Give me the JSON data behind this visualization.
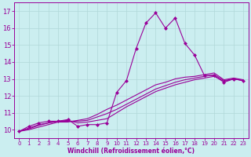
{
  "xlabel": "Windchill (Refroidissement éolien,°C)",
  "bg_color": "#cbeef0",
  "line_color": "#990099",
  "grid_color": "#b0d8d8",
  "xlim": [
    -0.5,
    23.5
  ],
  "ylim": [
    9.5,
    17.5
  ],
  "yticks": [
    10,
    11,
    12,
    13,
    14,
    15,
    16,
    17
  ],
  "xticks": [
    0,
    1,
    2,
    3,
    4,
    5,
    6,
    7,
    8,
    9,
    10,
    11,
    12,
    13,
    14,
    15,
    16,
    17,
    18,
    19,
    20,
    21,
    22,
    23
  ],
  "series": [
    [
      9.9,
      10.2,
      10.4,
      10.5,
      10.5,
      10.6,
      10.2,
      10.3,
      10.3,
      10.4,
      12.2,
      12.9,
      14.8,
      16.3,
      16.9,
      16.0,
      16.6,
      15.1,
      14.4,
      13.2,
      13.2,
      12.8,
      13.0,
      12.9
    ],
    [
      9.9,
      10.1,
      10.3,
      10.4,
      10.5,
      10.55,
      10.4,
      10.45,
      10.55,
      10.65,
      11.0,
      11.35,
      11.65,
      11.95,
      12.25,
      12.45,
      12.65,
      12.8,
      12.95,
      13.05,
      13.15,
      12.85,
      13.0,
      12.9
    ],
    [
      9.9,
      10.05,
      10.25,
      10.4,
      10.5,
      10.5,
      10.5,
      10.55,
      10.75,
      10.95,
      11.2,
      11.5,
      11.8,
      12.1,
      12.4,
      12.6,
      12.8,
      12.95,
      13.05,
      13.15,
      13.25,
      12.9,
      13.0,
      12.9
    ],
    [
      9.9,
      10.0,
      10.15,
      10.3,
      10.45,
      10.45,
      10.55,
      10.65,
      10.9,
      11.2,
      11.45,
      11.75,
      12.05,
      12.35,
      12.65,
      12.8,
      13.0,
      13.1,
      13.15,
      13.25,
      13.35,
      12.95,
      13.05,
      12.95
    ]
  ],
  "marker_series_idx": [
    0
  ],
  "marker": "D",
  "marker_size": 2.0,
  "lw": 0.8,
  "tick_fontsize": 5,
  "xlabel_fontsize": 5.5
}
